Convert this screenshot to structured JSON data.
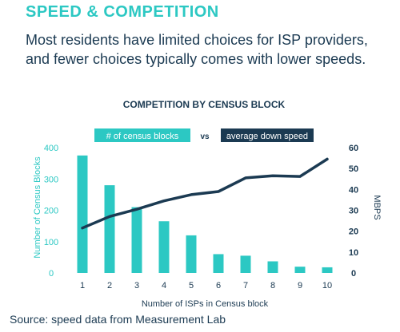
{
  "heading": "SPEED & COMPETITION",
  "subtitle": "Most residents have limited choices for ISP providers, and fewer choices typically comes with lower speeds.",
  "source": "Source: speed data from Measurement Lab",
  "colors": {
    "teal": "#2cc8c3",
    "navy": "#1b3a52"
  },
  "chart_data": {
    "type": "bar",
    "title": "COMPETITION BY CENSUS BLOCK",
    "xlabel": "Number of ISPs in Census block",
    "ylabel": "Number of Census Blocks",
    "y2label": "MBPS",
    "vs_label": "vs",
    "categories": [
      "1",
      "2",
      "3",
      "4",
      "5",
      "6",
      "7",
      "8",
      "9",
      "10"
    ],
    "ylim": [
      0,
      400
    ],
    "y2lim": [
      0,
      60
    ],
    "yticks": [
      "0",
      "100",
      "200",
      "300",
      "400"
    ],
    "y2ticks": [
      "0",
      "10",
      "20",
      "30",
      "40",
      "50",
      "60"
    ],
    "series": [
      {
        "name": "# of census blocks",
        "kind": "bar",
        "axis": "left",
        "color": "#2cc8c3",
        "values": [
          375,
          280,
          210,
          165,
          120,
          60,
          55,
          37,
          20,
          18
        ]
      },
      {
        "name": "average down speed",
        "kind": "line",
        "axis": "right",
        "color": "#1b3a52",
        "values": [
          21.5,
          27,
          30.5,
          34.5,
          37.5,
          39,
          45.5,
          46.5,
          46.2,
          54.5
        ]
      }
    ]
  }
}
